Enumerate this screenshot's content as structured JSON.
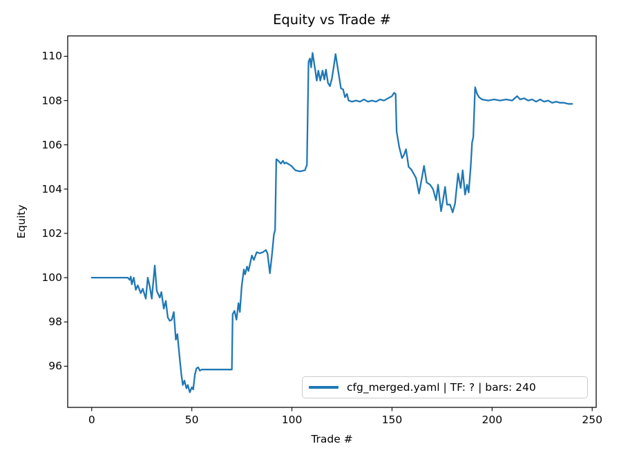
{
  "figure": {
    "background": "#ffffff"
  },
  "chart_data": {
    "type": "line",
    "title": "Equity vs Trade #",
    "xlabel": "Trade #",
    "ylabel": "Equity",
    "xlim": [
      -12,
      252
    ],
    "ylim": [
      94.14,
      110.92
    ],
    "xticks": [
      0,
      50,
      100,
      150,
      200,
      250
    ],
    "yticks": [
      96,
      98,
      100,
      102,
      104,
      106,
      108,
      110
    ],
    "grid": false,
    "legend_position": "lower right",
    "series": [
      {
        "name": "cfg_merged.yaml | TF: ? | bars: 240",
        "color": "#1f77b4",
        "x": [
          0,
          10,
          17,
          18,
          19,
          19.5,
          20,
          21,
          22,
          23,
          24.5,
          25.5,
          27,
          28,
          29,
          30,
          31.5,
          32.5,
          34,
          34.8,
          36,
          37,
          38,
          39,
          40,
          41,
          42,
          42.8,
          44,
          44.8,
          45.5,
          46.3,
          47.3,
          48,
          49,
          50,
          50.7,
          51.5,
          52.3,
          53.2,
          54,
          55,
          70,
          70.4,
          71.3,
          72.3,
          73.3,
          74,
          74.9,
          76,
          76.6,
          77.6,
          78.3,
          80,
          81,
          82.4,
          84,
          85.5,
          87,
          87.8,
          89,
          90,
          91,
          91.6,
          92.2,
          93,
          94.5,
          95.5,
          96.3,
          97,
          99.7,
          101.7,
          104,
          106.5,
          107.5,
          108.3,
          109,
          109.6,
          110.3,
          111.6,
          112.4,
          113.2,
          114.2,
          115.3,
          116.2,
          117,
          118,
          119,
          120,
          121,
          121.8,
          123,
          124.5,
          125.6,
          126.5,
          127.5,
          128.3,
          130,
          132,
          134,
          136,
          138,
          140,
          142,
          144,
          146,
          148,
          150,
          151,
          151.8,
          152.3,
          153.6,
          155,
          156,
          157,
          158.3,
          159.5,
          160.5,
          162,
          163.5,
          164.5,
          166,
          167.3,
          169,
          170.5,
          172,
          173,
          174.5,
          175.5,
          176.5,
          177.5,
          179,
          180.3,
          181.5,
          183,
          184.3,
          185.3,
          186.5,
          187.5,
          188.3,
          189.3,
          190,
          190.6,
          191.5,
          192.5,
          193.5,
          195,
          198,
          201,
          204,
          207,
          210,
          212.5,
          214,
          216,
          218,
          220,
          222,
          224,
          226,
          228,
          230,
          232,
          234,
          236,
          238,
          240
        ],
        "y": [
          100,
          100,
          100,
          100,
          99.9,
          100.05,
          99.7,
          100,
          99.45,
          99.65,
          99.3,
          99.5,
          99.05,
          100,
          99.6,
          99.05,
          100.55,
          99.4,
          99.1,
          99.35,
          98.6,
          98.95,
          98.2,
          98.05,
          98.1,
          98.45,
          97.2,
          97.45,
          96.3,
          95.6,
          95.15,
          95.35,
          95.0,
          95.15,
          94.82,
          95.05,
          94.95,
          95.6,
          95.9,
          95.95,
          95.8,
          95.85,
          95.85,
          98.35,
          98.5,
          98.1,
          98.85,
          98.45,
          99.6,
          100.37,
          100.15,
          100.5,
          100.3,
          101.0,
          100.8,
          101.15,
          101.1,
          101.15,
          101.25,
          101.1,
          100.2,
          101.0,
          101.95,
          102.15,
          105.35,
          105.3,
          105.15,
          105.28,
          105.15,
          105.2,
          105.05,
          104.85,
          104.8,
          104.85,
          105.1,
          109.75,
          109.9,
          109.5,
          110.15,
          109.4,
          108.9,
          109.35,
          108.9,
          109.35,
          108.95,
          109.4,
          108.8,
          108.65,
          109.0,
          109.6,
          110.1,
          109.4,
          108.55,
          108.5,
          108.15,
          108.3,
          108.0,
          107.95,
          108.0,
          107.95,
          108.05,
          107.95,
          108.0,
          107.95,
          108.05,
          108.0,
          108.1,
          108.2,
          108.35,
          108.3,
          106.6,
          105.9,
          105.4,
          105.55,
          105.8,
          105.0,
          104.9,
          104.75,
          104.5,
          103.8,
          104.3,
          105.05,
          104.3,
          104.2,
          104.0,
          103.5,
          104.2,
          103.0,
          103.5,
          104.1,
          103.3,
          103.3,
          102.95,
          103.35,
          104.7,
          104.05,
          104.85,
          103.75,
          104.2,
          103.85,
          105.0,
          106.1,
          106.35,
          108.6,
          108.3,
          108.15,
          108.05,
          108.0,
          108.05,
          108.0,
          108.05,
          108.0,
          108.2,
          108.05,
          108.1,
          108.0,
          108.05,
          107.95,
          108.05,
          107.95,
          108.0,
          107.9,
          107.95,
          107.9,
          107.9,
          107.85,
          107.85
        ]
      }
    ]
  }
}
